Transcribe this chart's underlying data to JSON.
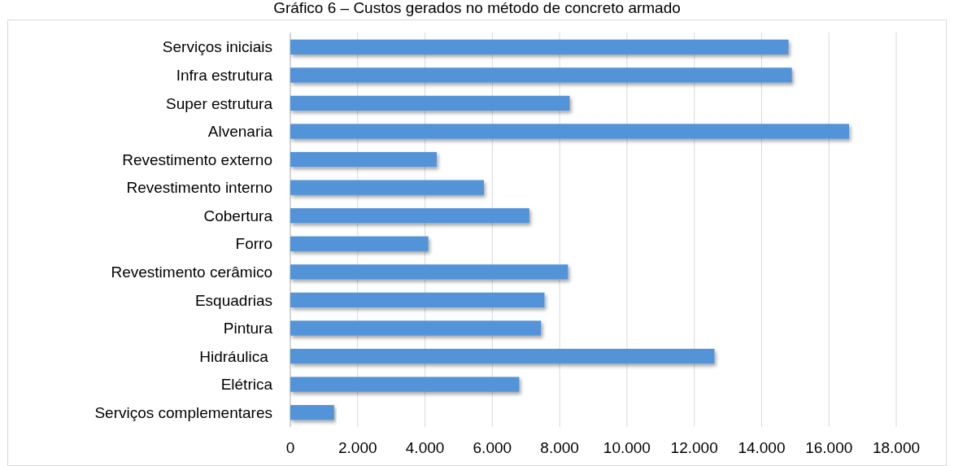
{
  "chart_data": {
    "type": "bar",
    "orientation": "horizontal",
    "title": "Gráfico 6 – Custos gerados no método de concreto armado",
    "categories": [
      "Serviços iniciais",
      "Infra estrutura",
      "Super estrutura",
      "Alvenaria",
      "Revestimento externo",
      "Revestimento interno",
      "Cobertura",
      "Forro",
      "Revestimento cerâmico",
      "Esquadrias",
      "Pintura",
      "Hidráulica ",
      "Elétrica",
      "Serviços complementares"
    ],
    "values": [
      14800,
      14900,
      8300,
      16600,
      4350,
      5750,
      7100,
      4100,
      8250,
      7550,
      7450,
      12600,
      6800,
      1300
    ],
    "color": "#5294d8",
    "xlim": [
      0,
      18000
    ],
    "xticks": [
      {
        "value": 0,
        "label": "0"
      },
      {
        "value": 2000,
        "label": "2.000"
      },
      {
        "value": 4000,
        "label": "4.000"
      },
      {
        "value": 6000,
        "label": "6.000"
      },
      {
        "value": 8000,
        "label": "8.000"
      },
      {
        "value": 10000,
        "label": "10.000"
      },
      {
        "value": 12000,
        "label": "12.000"
      },
      {
        "value": 14000,
        "label": "14.000"
      },
      {
        "value": 16000,
        "label": "16.000"
      },
      {
        "value": 18000,
        "label": "18.000"
      }
    ],
    "grid": "x"
  }
}
